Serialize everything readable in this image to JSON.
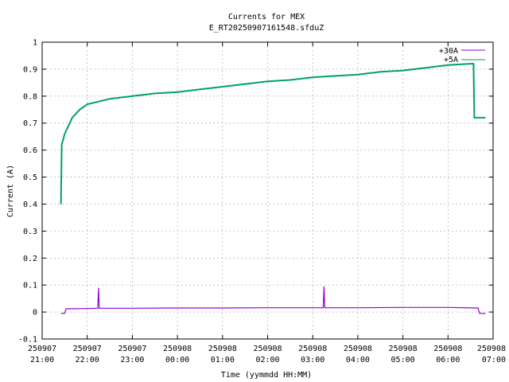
{
  "chart_data": {
    "type": "line",
    "title": "Currents for MEX",
    "subtitle": "E_RT20250907161548.sfduZ",
    "xlabel": "Time (yymmdd HH:MM)",
    "ylabel": "Current (A)",
    "ylim": [
      -0.1,
      1.0
    ],
    "xlim_hours": [
      21,
      31
    ],
    "grid": true,
    "legend_position": "top-right",
    "yticks": [
      "-0.1",
      "0",
      "0.1",
      "0.2",
      "0.3",
      "0.4",
      "0.5",
      "0.6",
      "0.7",
      "0.8",
      "0.9",
      "1"
    ],
    "xticks": [
      {
        "date": "250907",
        "time": "21:00"
      },
      {
        "date": "250907",
        "time": "22:00"
      },
      {
        "date": "250907",
        "time": "23:00"
      },
      {
        "date": "250908",
        "time": "00:00"
      },
      {
        "date": "250908",
        "time": "01:00"
      },
      {
        "date": "250908",
        "time": "02:00"
      },
      {
        "date": "250908",
        "time": "03:00"
      },
      {
        "date": "250908",
        "time": "04:00"
      },
      {
        "date": "250908",
        "time": "05:00"
      },
      {
        "date": "250908",
        "time": "06:00"
      },
      {
        "date": "250908",
        "time": "07:00"
      }
    ],
    "series": [
      {
        "name": "+30A",
        "color": "#9400d3",
        "points": [
          [
            "250907 21:25",
            -0.005
          ],
          [
            "250907 21:30",
            -0.005
          ],
          [
            "250907 21:32",
            0.012
          ],
          [
            "250907 22:00",
            0.013
          ],
          [
            "250907 22:14",
            0.014
          ],
          [
            "250907 22:15",
            0.09
          ],
          [
            "250907 22:16",
            0.014
          ],
          [
            "250907 23:00",
            0.014
          ],
          [
            "250908 00:00",
            0.015
          ],
          [
            "250908 01:00",
            0.015
          ],
          [
            "250908 02:00",
            0.016
          ],
          [
            "250908 03:00",
            0.016
          ],
          [
            "250908 03:14",
            0.016
          ],
          [
            "250908 03:15",
            0.095
          ],
          [
            "250908 03:16",
            0.016
          ],
          [
            "250908 04:00",
            0.016
          ],
          [
            "250908 05:00",
            0.017
          ],
          [
            "250908 06:00",
            0.017
          ],
          [
            "250908 06:40",
            0.015
          ],
          [
            "250908 06:42",
            -0.005
          ],
          [
            "250908 06:50",
            -0.005
          ]
        ]
      },
      {
        "name": "+5A",
        "color": "#009e73",
        "points": [
          [
            "250907 21:25",
            0.4
          ],
          [
            "250907 21:26",
            0.62
          ],
          [
            "250907 21:30",
            0.66
          ],
          [
            "250907 21:40",
            0.72
          ],
          [
            "250907 21:50",
            0.75
          ],
          [
            "250907 22:00",
            0.77
          ],
          [
            "250907 22:30",
            0.79
          ],
          [
            "250907 23:00",
            0.8
          ],
          [
            "250907 23:30",
            0.81
          ],
          [
            "250908 00:00",
            0.815
          ],
          [
            "250908 00:30",
            0.825
          ],
          [
            "250908 01:00",
            0.835
          ],
          [
            "250908 01:30",
            0.845
          ],
          [
            "250908 02:00",
            0.855
          ],
          [
            "250908 02:30",
            0.86
          ],
          [
            "250908 03:00",
            0.87
          ],
          [
            "250908 03:30",
            0.875
          ],
          [
            "250908 04:00",
            0.88
          ],
          [
            "250908 04:30",
            0.89
          ],
          [
            "250908 05:00",
            0.895
          ],
          [
            "250908 05:30",
            0.905
          ],
          [
            "250908 06:00",
            0.915
          ],
          [
            "250908 06:30",
            0.92
          ],
          [
            "250908 06:34",
            0.92
          ],
          [
            "250908 06:35",
            0.72
          ],
          [
            "250908 06:50",
            0.72
          ]
        ]
      }
    ]
  }
}
